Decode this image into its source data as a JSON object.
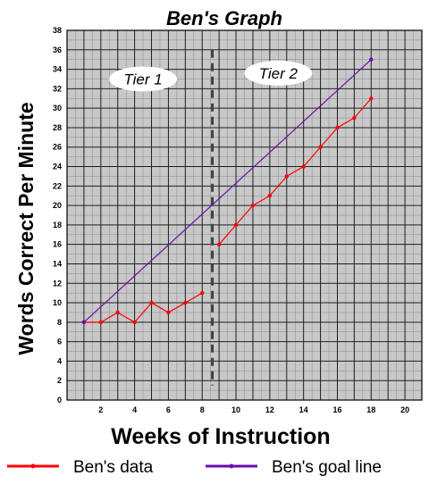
{
  "chart_data": {
    "type": "line",
    "title": "Ben's Graph",
    "xlabel": "Weeks of Instruction",
    "ylabel": "Words Correct Per Minute",
    "xlim": [
      0,
      21
    ],
    "ylim": [
      0,
      38
    ],
    "x_ticks": [
      2,
      4,
      6,
      8,
      10,
      12,
      14,
      16,
      18,
      20
    ],
    "y_ticks": [
      0,
      2,
      4,
      6,
      8,
      10,
      12,
      14,
      16,
      18,
      20,
      22,
      24,
      26,
      28,
      30,
      32,
      34,
      36,
      38
    ],
    "grid": true,
    "phase_line_x": 8.6,
    "phases": [
      {
        "label": "Tier 1",
        "x": 4.5,
        "y": 33
      },
      {
        "label": "Tier 2",
        "x": 12.5,
        "y": 33.6
      }
    ],
    "series": [
      {
        "name": "Ben's data",
        "color": "#ff0000",
        "segments": [
          [
            [
              1,
              8
            ],
            [
              2,
              8
            ],
            [
              3,
              9
            ],
            [
              4,
              8
            ],
            [
              5,
              10
            ],
            [
              6,
              9
            ],
            [
              7,
              10
            ],
            [
              8,
              11
            ]
          ],
          [
            [
              9,
              16
            ],
            [
              10,
              18
            ],
            [
              11,
              20
            ],
            [
              12,
              21
            ],
            [
              13,
              23
            ],
            [
              14,
              24
            ],
            [
              15,
              26
            ],
            [
              16,
              28
            ],
            [
              17,
              29
            ],
            [
              18,
              31
            ]
          ]
        ]
      },
      {
        "name": "Ben's goal line",
        "color": "#6a0dad",
        "segments": [
          [
            [
              1,
              8
            ],
            [
              18,
              35
            ]
          ]
        ]
      }
    ],
    "legend_position": "bottom"
  }
}
